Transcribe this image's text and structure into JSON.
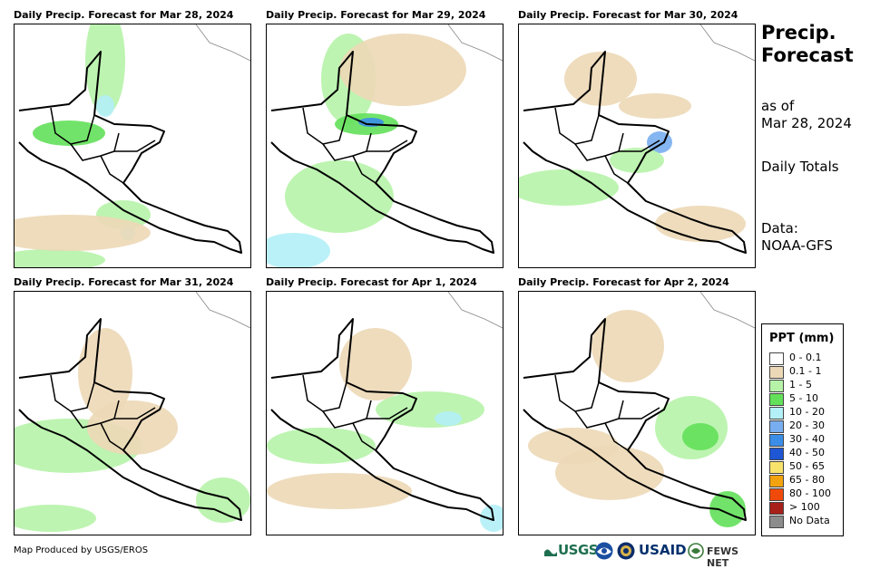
{
  "side": {
    "title": "Precip. Forecast",
    "as_of_label": "as of",
    "as_of_date": "Mar 28, 2024",
    "totals": "Daily Totals",
    "data_label": "Data:",
    "data_source": "NOAA-GFS"
  },
  "panels": [
    {
      "title": "Daily Precip. Forecast for Mar 28, 2024"
    },
    {
      "title": "Daily Precip. Forecast for Mar 29, 2024"
    },
    {
      "title": "Daily Precip. Forecast for Mar 30, 2024"
    },
    {
      "title": "Daily Precip. Forecast for Mar 31, 2024"
    },
    {
      "title": "Daily Precip. Forecast for Apr 1, 2024"
    },
    {
      "title": "Daily Precip. Forecast for Apr 2, 2024"
    }
  ],
  "legend": {
    "title": "PPT (mm)",
    "items": [
      {
        "label": "0 - 0.1",
        "color": "#ffffff"
      },
      {
        "label": "0.1 - 1",
        "color": "#ecd8b6"
      },
      {
        "label": "1 - 5",
        "color": "#b6f3a8"
      },
      {
        "label": "5 - 10",
        "color": "#63e05a"
      },
      {
        "label": "10 - 20",
        "color": "#b3f0f7"
      },
      {
        "label": "20 - 30",
        "color": "#78aef0"
      },
      {
        "label": "30 - 40",
        "color": "#3a8ee8"
      },
      {
        "label": "40 - 50",
        "color": "#1e56d4"
      },
      {
        "label": "50 - 65",
        "color": "#f7e36b"
      },
      {
        "label": "65 - 80",
        "color": "#f2a20e"
      },
      {
        "label": "80 - 100",
        "color": "#f04a0b"
      },
      {
        "label": "> 100",
        "color": "#a8201a"
      },
      {
        "label": "No Data",
        "color": "#8c8c8c"
      }
    ]
  },
  "footer": {
    "credit": "Map Produced by USGS/EROS",
    "logo_usgs": "USGS",
    "logo_usaid": "USAID",
    "logo_fews": "FEWS NET"
  }
}
